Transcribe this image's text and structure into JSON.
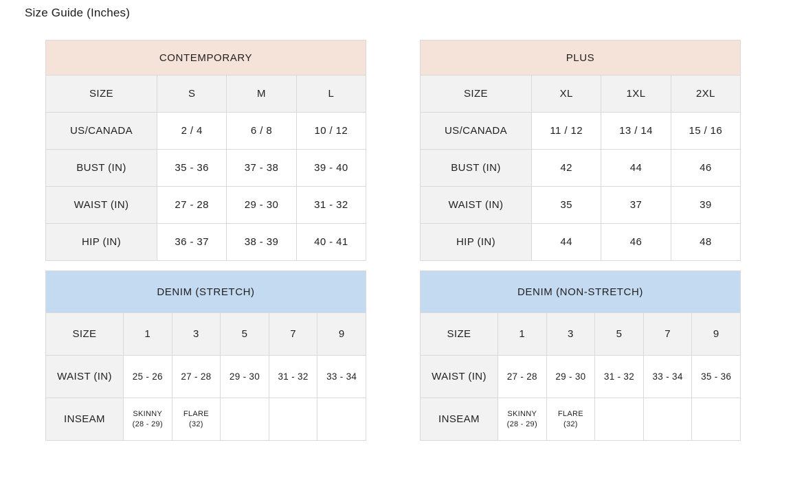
{
  "page": {
    "title": "Size Guide (Inches)"
  },
  "colors": {
    "peach_header": "#f5e2d9",
    "blue_header": "#c4daf0",
    "label_cell_bg": "#f2f2f2",
    "border": "#d9d9d9",
    "text": "#212121"
  },
  "tables": {
    "contemporary": {
      "title": "CONTEMPORARY",
      "columns": [
        "SIZE",
        "S",
        "M",
        "L"
      ],
      "rows": [
        {
          "label": "US/CANADA",
          "values": [
            "2 / 4",
            "6 / 8",
            "10 / 12"
          ]
        },
        {
          "label": "BUST (IN)",
          "values": [
            "35 - 36",
            "37 - 38",
            "39 - 40"
          ]
        },
        {
          "label": "WAIST (IN)",
          "values": [
            "27 - 28",
            "29 - 30",
            "31 - 32"
          ]
        },
        {
          "label": "HIP (IN)",
          "values": [
            "36 - 37",
            "38 - 39",
            "40 - 41"
          ]
        }
      ]
    },
    "plus": {
      "title": "PLUS",
      "columns": [
        "SIZE",
        "XL",
        "1XL",
        "2XL"
      ],
      "rows": [
        {
          "label": "US/CANADA",
          "values": [
            "11 / 12",
            "13 / 14",
            "15 / 16"
          ]
        },
        {
          "label": "BUST (IN)",
          "values": [
            "42",
            "44",
            "46"
          ]
        },
        {
          "label": "WAIST (IN)",
          "values": [
            "35",
            "37",
            "39"
          ]
        },
        {
          "label": "HIP (IN)",
          "values": [
            "44",
            "46",
            "48"
          ]
        }
      ]
    },
    "denim_stretch": {
      "title": "DENIM (STRETCH)",
      "columns": [
        "SIZE",
        "1",
        "3",
        "5",
        "7",
        "9"
      ],
      "rows": [
        {
          "label": "WAIST (IN)",
          "values": [
            "25 - 26",
            "27 - 28",
            "29 - 30",
            "31 - 32",
            "33 - 34"
          ]
        },
        {
          "label": "INSEAM",
          "values": [
            "SKINNY\n(28 - 29)",
            "FLARE\n(32)",
            "",
            "",
            ""
          ]
        }
      ]
    },
    "denim_nonstretch": {
      "title": "DENIM (NON-STRETCH)",
      "columns": [
        "SIZE",
        "1",
        "3",
        "5",
        "7",
        "9"
      ],
      "rows": [
        {
          "label": "WAIST (IN)",
          "values": [
            "27 - 28",
            "29 - 30",
            "31 - 32",
            "33 - 34",
            "35 - 36"
          ]
        },
        {
          "label": "INSEAM",
          "values": [
            "SKINNY\n(28 - 29)",
            "FLARE\n(32)",
            "",
            "",
            ""
          ]
        }
      ]
    }
  }
}
